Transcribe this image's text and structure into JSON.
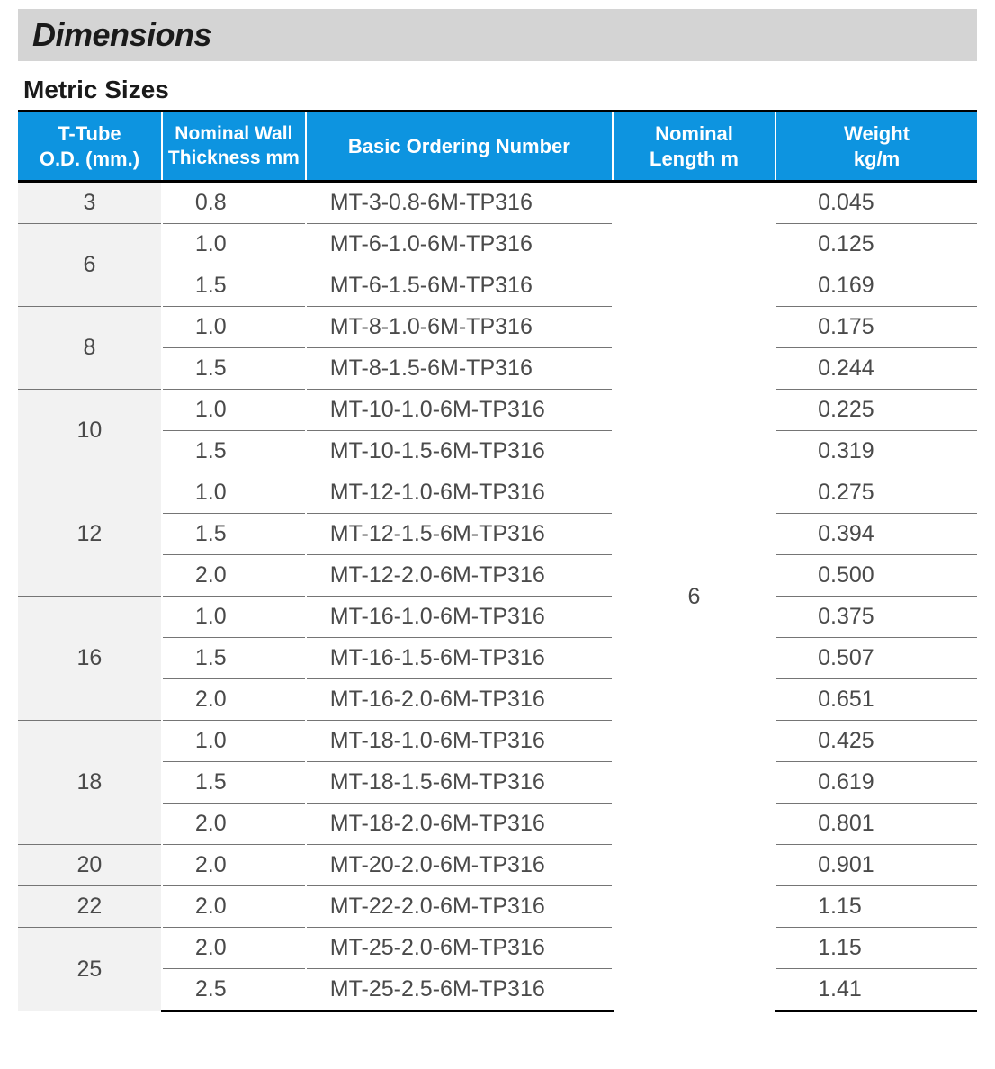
{
  "title": "Dimensions",
  "subtitle": "Metric Sizes",
  "colors": {
    "header_bg": "#0d94e0",
    "header_text": "#ffffff",
    "title_bar_bg": "#d4d4d4",
    "od_col_bg": "#f2f2f2",
    "cell_text": "#4a4a4a",
    "border_dark": "#000000",
    "border_light": "#757575",
    "gap": "#ffffff"
  },
  "columns": [
    {
      "key": "od",
      "label_l1": "T-Tube",
      "label_l2": "O.D. (mm.)"
    },
    {
      "key": "thickness",
      "label_l1": "Nominal Wall",
      "label_l2": "Thickness mm"
    },
    {
      "key": "order",
      "label_l1": "Basic Ordering Number",
      "label_l2": ""
    },
    {
      "key": "length",
      "label_l1": "Nominal",
      "label_l2": "Length m"
    },
    {
      "key": "weight",
      "label_l1": "Weight",
      "label_l2": "kg/m"
    }
  ],
  "nominal_length": "6",
  "groups": [
    {
      "od": "3",
      "rows": [
        {
          "thickness": "0.8",
          "order": "MT-3-0.8-6M-TP316",
          "weight": "0.045"
        }
      ]
    },
    {
      "od": "6",
      "rows": [
        {
          "thickness": "1.0",
          "order": "MT-6-1.0-6M-TP316",
          "weight": "0.125"
        },
        {
          "thickness": "1.5",
          "order": "MT-6-1.5-6M-TP316",
          "weight": "0.169"
        }
      ]
    },
    {
      "od": "8",
      "rows": [
        {
          "thickness": "1.0",
          "order": "MT-8-1.0-6M-TP316",
          "weight": "0.175"
        },
        {
          "thickness": "1.5",
          "order": "MT-8-1.5-6M-TP316",
          "weight": "0.244"
        }
      ]
    },
    {
      "od": "10",
      "rows": [
        {
          "thickness": "1.0",
          "order": "MT-10-1.0-6M-TP316",
          "weight": "0.225"
        },
        {
          "thickness": "1.5",
          "order": "MT-10-1.5-6M-TP316",
          "weight": "0.319"
        }
      ]
    },
    {
      "od": "12",
      "rows": [
        {
          "thickness": "1.0",
          "order": "MT-12-1.0-6M-TP316",
          "weight": "0.275"
        },
        {
          "thickness": "1.5",
          "order": "MT-12-1.5-6M-TP316",
          "weight": "0.394"
        },
        {
          "thickness": "2.0",
          "order": "MT-12-2.0-6M-TP316",
          "weight": "0.500"
        }
      ]
    },
    {
      "od": "16",
      "rows": [
        {
          "thickness": "1.0",
          "order": "MT-16-1.0-6M-TP316",
          "weight": "0.375"
        },
        {
          "thickness": "1.5",
          "order": "MT-16-1.5-6M-TP316",
          "weight": "0.507"
        },
        {
          "thickness": "2.0",
          "order": "MT-16-2.0-6M-TP316",
          "weight": "0.651"
        }
      ]
    },
    {
      "od": "18",
      "rows": [
        {
          "thickness": "1.0",
          "order": "MT-18-1.0-6M-TP316",
          "weight": "0.425"
        },
        {
          "thickness": "1.5",
          "order": "MT-18-1.5-6M-TP316",
          "weight": "0.619"
        },
        {
          "thickness": "2.0",
          "order": "MT-18-2.0-6M-TP316",
          "weight": "0.801"
        }
      ]
    },
    {
      "od": "20",
      "rows": [
        {
          "thickness": "2.0",
          "order": "MT-20-2.0-6M-TP316",
          "weight": "0.901"
        }
      ]
    },
    {
      "od": "22",
      "rows": [
        {
          "thickness": "2.0",
          "order": "MT-22-2.0-6M-TP316",
          "weight": "1.15"
        }
      ]
    },
    {
      "od": "25",
      "rows": [
        {
          "thickness": "2.0",
          "order": "MT-25-2.0-6M-TP316",
          "weight": "1.15"
        },
        {
          "thickness": "2.5",
          "order": "MT-25-2.5-6M-TP316",
          "weight": "1.41"
        }
      ]
    }
  ]
}
